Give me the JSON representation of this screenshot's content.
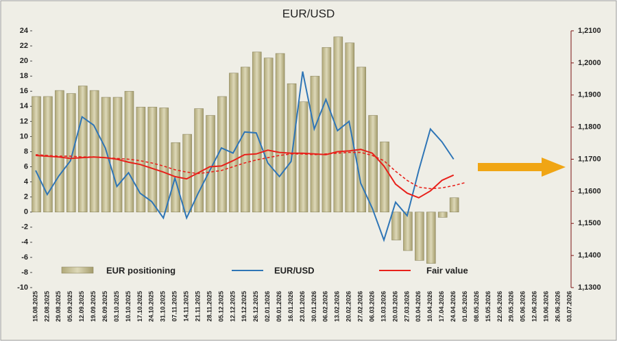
{
  "chart_data": {
    "type": "bar_line",
    "title": "EUR/USD",
    "categories": [
      "15.08.2025",
      "22.08.2025",
      "29.08.2025",
      "05.09.2025",
      "12.09.2025",
      "19.09.2025",
      "26.09.2025",
      "03.10.2025",
      "10.10.2025",
      "17.10.2025",
      "24.10.2025",
      "31.10.2025",
      "07.11.2025",
      "14.11.2025",
      "21.11.2025",
      "28.11.2025",
      "05.12.2025",
      "12.12.2025",
      "19.12.2025",
      "26.12.2025",
      "02.01.2026",
      "09.01.2026",
      "16.01.2026",
      "23.01.2026",
      "30.01.2026",
      "06.02.2026",
      "13.02.2026",
      "20.02.2026",
      "27.02.2026",
      "06.03.2026",
      "13.03.2026",
      "20.03.2026",
      "27.03.2026",
      "03.04.2026",
      "10.04.2026",
      "17.04.2026",
      "24.04.2026",
      "01.05.2026",
      "08.05.2026",
      "15.05.2026",
      "22.05.2026",
      "29.05.2026",
      "05.06.2026",
      "12.06.2026",
      "19.06.2026",
      "26.06.2026",
      "03.07.2026"
    ],
    "series": [
      {
        "name": "EUR positioning",
        "kind": "bar",
        "color": "#c9c29b",
        "axis": "y",
        "values": [
          15.3,
          15.3,
          16.1,
          15.7,
          16.7,
          16.1,
          15.2,
          15.2,
          16.0,
          13.9,
          13.9,
          13.8,
          9.2,
          10.3,
          13.7,
          12.8,
          15.3,
          18.4,
          19.2,
          21.2,
          20.4,
          21.0,
          17.0,
          14.6,
          18.0,
          21.8,
          23.2,
          22.4,
          19.2,
          12.8,
          9.3,
          -3.7,
          -5.1,
          -6.4,
          -6.8,
          -0.7,
          1.9,
          null,
          null,
          null,
          null,
          null,
          null,
          null,
          null,
          null,
          null
        ]
      },
      {
        "name": "EUR/USD",
        "kind": "line",
        "color": "#2e75b6",
        "axis": "y2",
        "values": [
          1.1665,
          1.159,
          1.1648,
          1.1695,
          1.1832,
          1.1806,
          1.1735,
          1.1615,
          1.1658,
          1.1594,
          1.1568,
          1.1517,
          1.1641,
          1.1517,
          1.1594,
          1.1665,
          1.1735,
          1.1719,
          1.1785,
          1.1782,
          1.1688,
          1.1646,
          1.1693,
          1.1973,
          1.1794,
          1.1886,
          1.1789,
          1.1818,
          1.1625,
          1.1547,
          1.1448,
          1.1566,
          1.1524,
          1.1665,
          1.1794,
          1.1754,
          1.17,
          null,
          null,
          null,
          null,
          null,
          null,
          null,
          null,
          null,
          null
        ]
      },
      {
        "name": "Fair value",
        "kind": "line",
        "color": "#e8201a",
        "axis": "y",
        "values": [
          7.5,
          7.4,
          7.3,
          7.1,
          7.2,
          7.3,
          7.2,
          7.0,
          6.6,
          6.3,
          5.8,
          5.3,
          4.7,
          4.4,
          5.2,
          6.0,
          6.1,
          6.8,
          7.6,
          7.7,
          8.2,
          7.9,
          7.8,
          7.8,
          7.7,
          7.6,
          8.0,
          8.1,
          8.3,
          7.8,
          6.1,
          3.7,
          2.5,
          1.9,
          2.8,
          4.2,
          4.9,
          null,
          null,
          null,
          null,
          null,
          null,
          null,
          null,
          null,
          null
        ]
      },
      {
        "kind": "dashed",
        "color": "#e8201a",
        "axis": "y",
        "values": [
          7.6,
          7.5,
          7.4,
          7.4,
          7.3,
          7.3,
          7.2,
          7.1,
          7.0,
          6.8,
          6.5,
          6.1,
          5.6,
          5.3,
          5.1,
          5.3,
          5.5,
          6.0,
          6.5,
          6.9,
          7.2,
          7.5,
          7.7,
          7.7,
          7.6,
          7.7,
          7.8,
          7.9,
          7.9,
          7.5,
          6.8,
          5.4,
          4.2,
          3.3,
          3.1,
          3.2,
          3.5,
          3.9,
          null,
          null,
          null,
          null,
          null,
          null,
          null,
          null,
          null
        ]
      }
    ],
    "ylim": [
      -10,
      24
    ],
    "yticks": [
      -10,
      -8,
      -6,
      -4,
      -2,
      0,
      2,
      4,
      6,
      8,
      10,
      12,
      14,
      16,
      18,
      20,
      22,
      24
    ],
    "y2lim": [
      1.13,
      1.21
    ],
    "y2ticks": [
      {
        "value": 1.13,
        "label": "1,1300"
      },
      {
        "value": 1.14,
        "label": "1,1400"
      },
      {
        "value": 1.15,
        "label": "1,1500"
      },
      {
        "value": 1.16,
        "label": "1,1600"
      },
      {
        "value": 1.17,
        "label": "1,1700"
      },
      {
        "value": 1.18,
        "label": "1,1800"
      },
      {
        "value": 1.19,
        "label": "1,1900"
      },
      {
        "value": 1.2,
        "label": "1,2000"
      },
      {
        "value": 1.21,
        "label": "1,2100"
      }
    ]
  }
}
